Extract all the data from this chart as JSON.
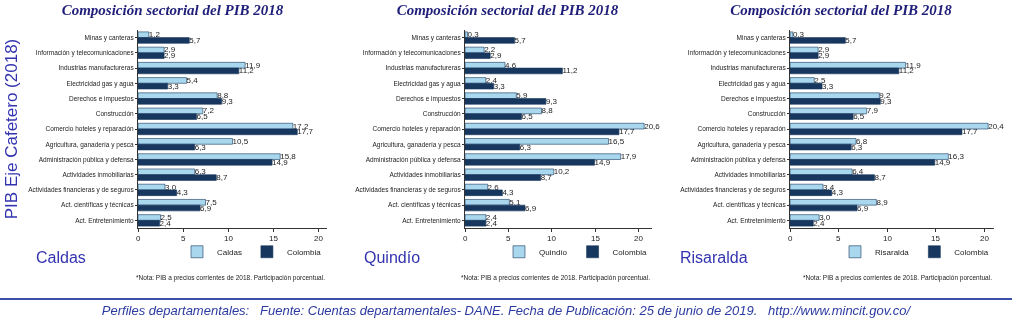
{
  "chart_data": [
    {
      "type": "bar",
      "orientation": "horizontal",
      "title": "Composición sectorial del PIB 2018",
      "ylabel": "PIB Eje Cafetero (2018)",
      "categories": [
        "Minas y canteras",
        "Información y telecomunicaciones",
        "Industrias manufactureras",
        "Electricidad gas y agua",
        "Derechos e impuestos",
        "Construcción",
        "Comercio hoteles y reparación",
        "Agricultura, ganadería y pesca",
        "Administración pública y defensa",
        "Actividades inmobiliarias",
        "Actividades financieras y de seguros",
        "Act. científicas y técnicas",
        "Act. Entretenimiento"
      ],
      "series": [
        {
          "name": "Caldas",
          "color": "#a9d8ee",
          "values": [
            1.2,
            2.9,
            11.9,
            5.4,
            8.8,
            7.2,
            17.2,
            10.5,
            15.8,
            6.3,
            3.0,
            7.5,
            2.5
          ],
          "value_labels": [
            "1,2",
            "2,9",
            "11,9",
            "5,4",
            "8,8",
            "7,2",
            "17,2",
            "10,5",
            "15,8",
            "6,3",
            "3,0",
            "7,5",
            "2,5"
          ]
        },
        {
          "name": "Colombia",
          "color": "#17375e",
          "values": [
            5.7,
            2.9,
            11.2,
            3.3,
            9.3,
            6.5,
            17.7,
            6.3,
            14.9,
            8.7,
            4.3,
            6.9,
            2.4
          ],
          "value_labels": [
            "5,7",
            "2,9",
            "11,2",
            "3,3",
            "9,3",
            "6,5",
            "17,7",
            "6,3",
            "14,9",
            "8,7",
            "4,3",
            "6,9",
            "2,4"
          ]
        }
      ],
      "xlim": [
        0,
        21
      ],
      "xticks": [
        0,
        5,
        10,
        15,
        20
      ],
      "legend": "bottom",
      "annotations": [
        "Caldas",
        "*Nota: PIB a precios corrientes de 2018. Participación porcentual.",
        "Perfiles departamentales:   Fuente: Cuentas departamentales- DANE. Fecha de Publicación: 25 de junio de 2019.   http://www.mincit.gov.co/"
      ]
    },
    {
      "type": "bar",
      "orientation": "horizontal",
      "title": "Composición sectorial del PIB 2018",
      "categories": [
        "Minas y canteras",
        "Información y telecomunicaciones",
        "Industrias manufactureras",
        "Electricidad gas y agua",
        "Derechos e impuestos",
        "Construcción",
        "Comercio hoteles y reparación",
        "Agricultura, ganadería y pesca",
        "Administración pública y defensa",
        "Actividades inmobiliarias",
        "Actividades financieras y de seguros",
        "Act. científicas y técnicas",
        "Act. Entretenimiento"
      ],
      "series": [
        {
          "name": "Quindío",
          "color": "#a9d8ee",
          "values": [
            0.3,
            2.2,
            4.6,
            2.4,
            5.9,
            8.8,
            20.6,
            16.5,
            17.9,
            10.2,
            2.6,
            5.1,
            2.4
          ],
          "value_labels": [
            "0,3",
            "2,2",
            "4,6",
            "2,4",
            "5,9",
            "8,8",
            "20,6",
            "16,5",
            "17,9",
            "10,2",
            "2,6",
            "5,1",
            "2,4"
          ]
        },
        {
          "name": "Colombia",
          "color": "#17375e",
          "values": [
            5.7,
            2.9,
            11.2,
            3.3,
            9.3,
            6.5,
            17.7,
            6.3,
            14.9,
            8.7,
            4.3,
            6.9,
            2.4
          ],
          "value_labels": [
            "5,7",
            "2,9",
            "11,2",
            "3,3",
            "9,3",
            "6,5",
            "17,7",
            "6,3",
            "14,9",
            "8,7",
            "4,3",
            "6,9",
            "2,4"
          ]
        }
      ],
      "xlim": [
        0,
        21.5
      ],
      "xticks": [
        0,
        5,
        10,
        15,
        20
      ],
      "legend": "bottom",
      "annotations": [
        "Quindío",
        "*Nota: PIB a precios corrientes de 2018. Participación porcentual."
      ]
    },
    {
      "type": "bar",
      "orientation": "horizontal",
      "title": "Composición sectorial del PIB 2018",
      "categories": [
        "Minas y canteras",
        "Información y telecomunicaciones",
        "Industrias manufactureras",
        "Electricidad gas y agua",
        "Derechos e impuestos",
        "Construcción",
        "Comercio hoteles y reparación",
        "Agricultura, ganadería y pesca",
        "Administración pública y defensa",
        "Actividades inmobiliarias",
        "Actividades financieras y de seguros",
        "Act. científicas y técnicas",
        "Act. Entretenimiento"
      ],
      "series": [
        {
          "name": "Risaralda",
          "color": "#a9d8ee",
          "values": [
            0.3,
            2.9,
            11.9,
            2.5,
            9.2,
            7.9,
            20.4,
            6.8,
            16.3,
            6.4,
            3.4,
            8.9,
            3.0
          ],
          "value_labels": [
            "0,3",
            "2,9",
            "11,9",
            "2,5",
            "9,2",
            "7,9",
            "20,4",
            "6,8",
            "16,3",
            "6,4",
            "3,4",
            "8,9",
            "3,0"
          ]
        },
        {
          "name": "Colombia",
          "color": "#17375e",
          "values": [
            5.7,
            2.9,
            11.2,
            3.3,
            9.3,
            6.5,
            17.7,
            6.3,
            14.9,
            8.7,
            4.3,
            6.9,
            2.4
          ],
          "value_labels": [
            "5,7",
            "2,9",
            "11,2",
            "3,3",
            "9,3",
            "6,5",
            "17,7",
            "6,3",
            "14,9",
            "8,7",
            "4,3",
            "6,9",
            "2,4"
          ]
        }
      ],
      "xlim": [
        0,
        21
      ],
      "xticks": [
        0,
        5,
        10,
        15,
        20
      ],
      "legend": "bottom",
      "annotations": [
        "Risaralda",
        "*Nota: PIB a precios corrientes de 2018. Participación porcentual."
      ]
    }
  ]
}
